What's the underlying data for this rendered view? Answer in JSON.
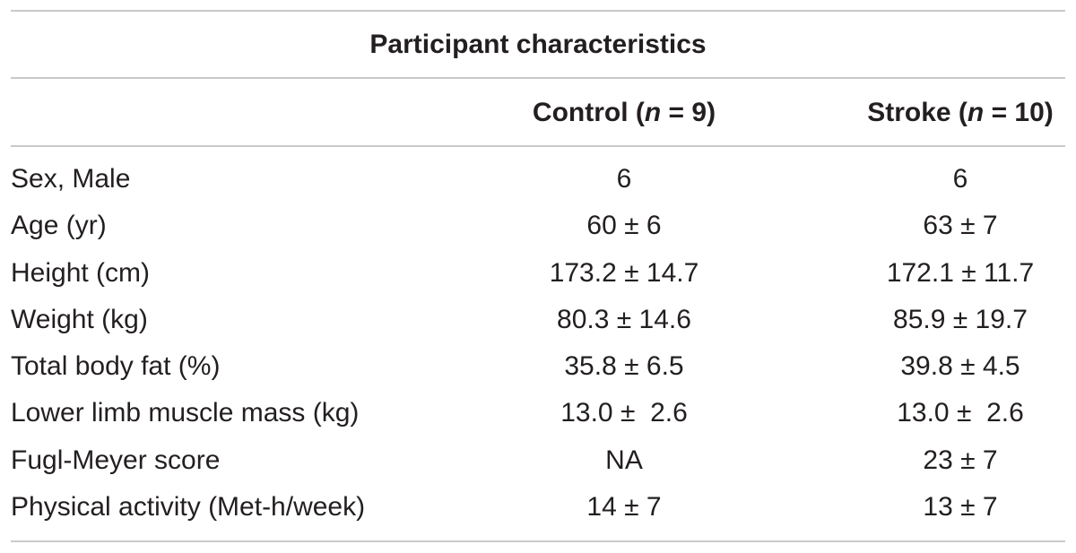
{
  "table": {
    "title": "Participant characteristics",
    "columns": [
      {
        "label": "Control (",
        "n_symbol": "n",
        "n_value": " = 9)"
      },
      {
        "label": "Stroke (",
        "n_symbol": "n",
        "n_value": " = 10)"
      }
    ],
    "rows": [
      {
        "label": "Sex, Male",
        "control": "6",
        "stroke": "6"
      },
      {
        "label": "Age (yr)",
        "control": "60 ± 6",
        "stroke": "63 ± 7"
      },
      {
        "label": "Height (cm)",
        "control": "173.2 ± 14.7",
        "stroke": "172.1 ± 11.7"
      },
      {
        "label": "Weight (kg)",
        "control": "80.3 ± 14.6",
        "stroke": "85.9 ± 19.7"
      },
      {
        "label": "Total body fat (%)",
        "control": "35.8 ± 6.5",
        "stroke": "39.8 ± 4.5"
      },
      {
        "label": "Lower limb muscle mass (kg)",
        "control": "13.0 ±  2.6",
        "stroke": "13.0 ±  2.6"
      },
      {
        "label": "Fugl-Meyer score",
        "control": "NA",
        "stroke": "23 ± 7"
      },
      {
        "label": "Physical activity (Met-h/week)",
        "control": "14 ± 7",
        "stroke": "13 ± 7"
      }
    ]
  }
}
